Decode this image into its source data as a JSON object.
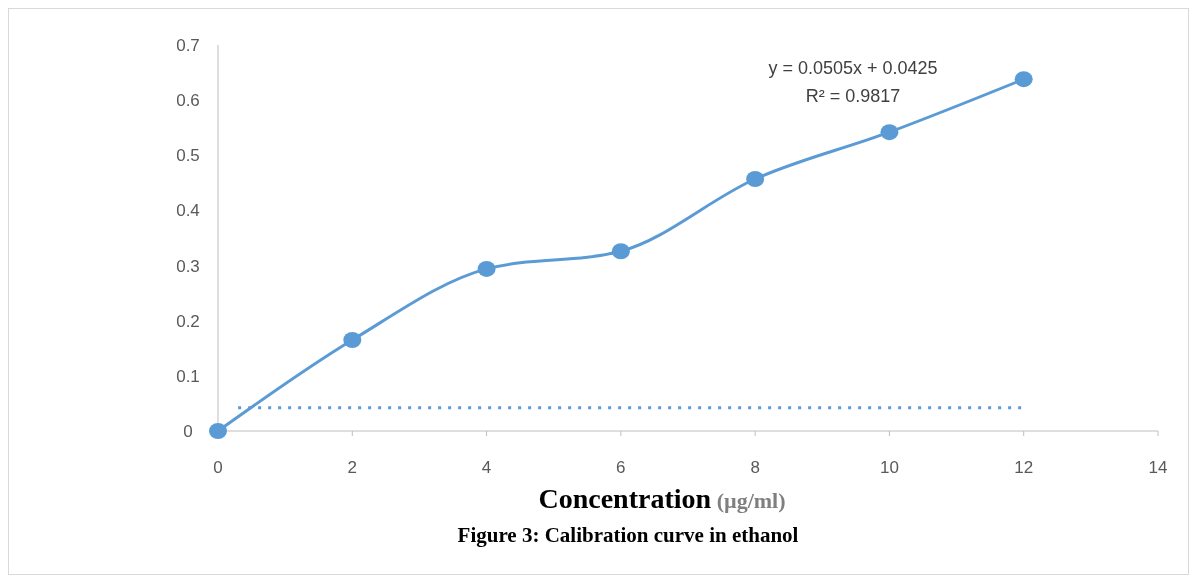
{
  "chart_data": {
    "type": "line",
    "xlabel": "Concentration (µg/ml)",
    "xlim": [
      0,
      14
    ],
    "xticks": [
      0,
      2,
      4,
      6,
      8,
      10,
      12,
      14
    ],
    "ylim": [
      0,
      0.7
    ],
    "yticks": [
      {
        "value": 0,
        "label": "0"
      },
      {
        "value": 0.1,
        "label": "0.1"
      },
      {
        "value": 0.2,
        "label": "0.2"
      },
      {
        "value": 0.3,
        "label": "0.3"
      },
      {
        "value": 0.4,
        "label": "0.4"
      },
      {
        "value": 0.5,
        "label": "0.5"
      },
      {
        "value": 0.6,
        "label": "0.6"
      },
      {
        "value": 0.7,
        "label": "0.7"
      }
    ],
    "series": [
      {
        "color": "#5b9bd5",
        "x": [
          0,
          2,
          4,
          6,
          8,
          10,
          12
        ],
        "values": [
          0,
          0.165,
          0.294,
          0.326,
          0.457,
          0.542,
          0.638
        ],
        "marker": "circle",
        "line_style": "solid"
      },
      {
        "color": "#5b9bd5",
        "x": [
          0.3,
          12
        ],
        "values": [
          0.042,
          0.042
        ],
        "marker": "none",
        "line_style": "dotted"
      }
    ],
    "annotations": [
      "y = 0.0505x + 0.0425",
      "R² = 0.9817",
      "Figure 3: Calibration curve in ethanol"
    ]
  }
}
